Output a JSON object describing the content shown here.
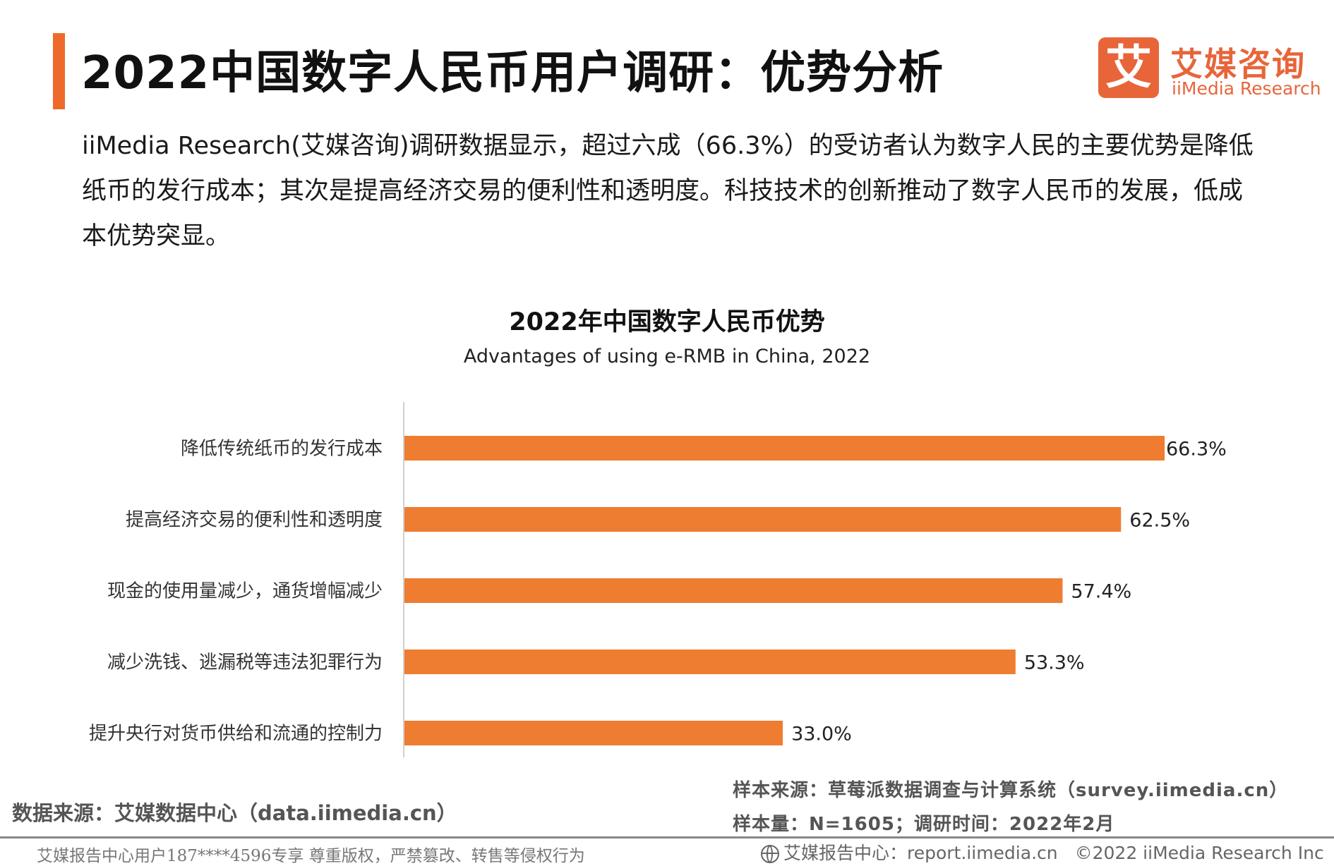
{
  "header": {
    "title": "2022中国数字人民币用户调研：优势分析",
    "logo_cn": "艾媒咨询",
    "logo_en": "iiMedia Research",
    "logo_glyph": "艾"
  },
  "description": "iiMedia Research(艾媒咨询)调研数据显示，超过六成（66.3%）的受访者认为数字人民的主要优势是降低纸币的发行成本；其次是提高经济交易的便利性和透明度。科技技术的创新推动了数字人民币的发展，低成本优势突显。",
  "chart_data": {
    "type": "bar",
    "orientation": "horizontal",
    "title": "2022年中国数字人民币优势",
    "subtitle": "Advantages of using e-RMB in China, 2022",
    "categories": [
      "降低传统纸币的发行成本",
      "提高经济交易的便利性和透明度",
      "现金的使用量减少，通货增幅减少",
      "减少洗钱、逃漏税等违法犯罪行为",
      "提升央行对货币供给和流通的控制力"
    ],
    "values": [
      66.3,
      62.5,
      57.4,
      53.3,
      33.0
    ],
    "value_labels": [
      "66.3%",
      "62.5%",
      "57.4%",
      "53.3%",
      "33.0%"
    ],
    "xlim": [
      0,
      70
    ],
    "bar_color": "#ee7d31",
    "grid": false,
    "legend": "none"
  },
  "sources": {
    "data_source": "数据来源：艾媒数据中心（data.iimedia.cn）",
    "sample_source": "样本来源：草莓派数据调查与计算系统（survey.iimedia.cn）",
    "sample_size": "样本量：N=1605；调研时间：2022年2月"
  },
  "footer": {
    "watermark": "艾媒报告中心用户187****4596专享 尊重版权，严禁篡改、转售等侵权行为",
    "report_center": "艾媒报告中心：report.iimedia.cn",
    "copyright": "©2022 iiMedia Research Inc",
    "icon": "globe-icon"
  },
  "colors": {
    "accent": "#ee6a2b",
    "logo": "#e8653a",
    "bar": "#ee7d31"
  }
}
